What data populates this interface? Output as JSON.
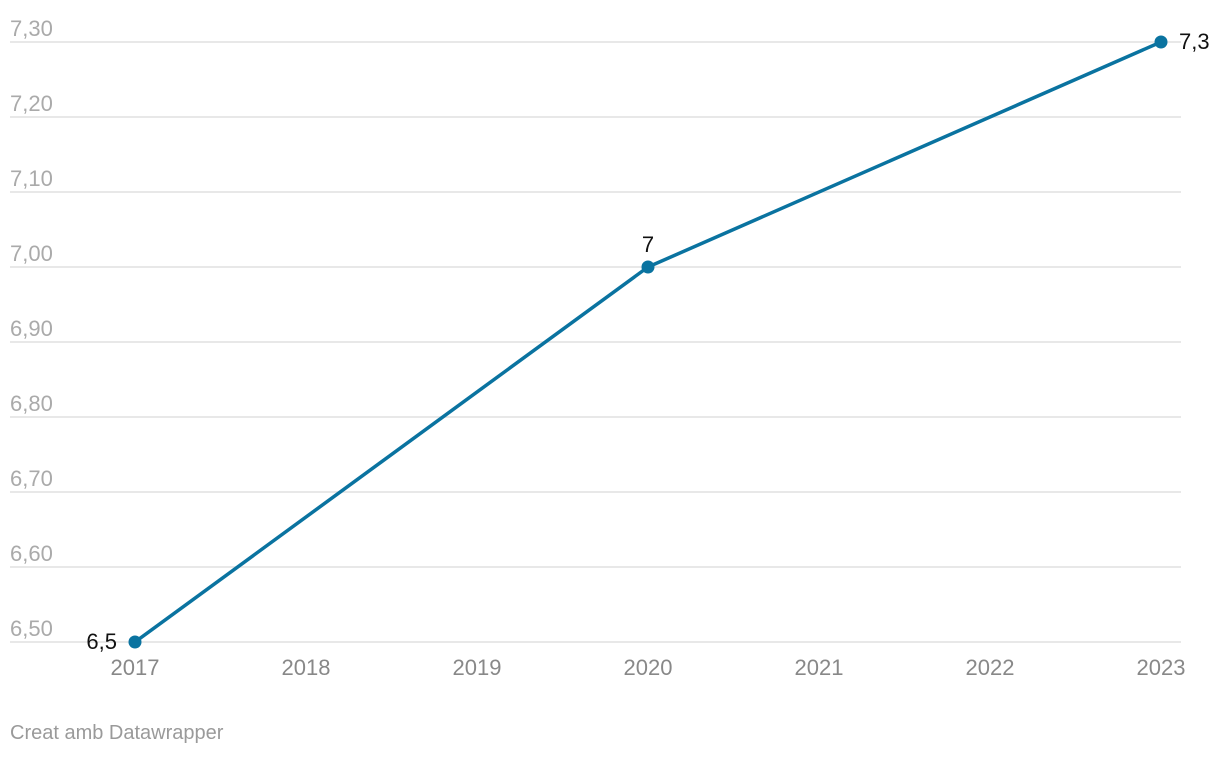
{
  "chart_data": {
    "type": "line",
    "title": "",
    "xlabel": "",
    "ylabel": "",
    "categories": [
      "2017",
      "2018",
      "2019",
      "2020",
      "2021",
      "2022",
      "2023"
    ],
    "series": [
      {
        "color": "#0a73a0",
        "points": [
          {
            "x": "2017",
            "y": 6.5,
            "label": "6,5"
          },
          {
            "x": "2020",
            "y": 7.0,
            "label": "7"
          },
          {
            "x": "2023",
            "y": 7.3,
            "label": "7,3"
          }
        ]
      }
    ],
    "ylim": [
      6.5,
      7.3
    ],
    "yticks": [
      {
        "value": 7.3,
        "label": "7,30"
      },
      {
        "value": 7.2,
        "label": "7,20"
      },
      {
        "value": 7.1,
        "label": "7,10"
      },
      {
        "value": 7.0,
        "label": "7,00"
      },
      {
        "value": 6.9,
        "label": "6,90"
      },
      {
        "value": 6.8,
        "label": "6,80"
      },
      {
        "value": 6.7,
        "label": "6,70"
      },
      {
        "value": 6.6,
        "label": "6,60"
      },
      {
        "value": 6.5,
        "label": "6,50"
      }
    ],
    "grid": true,
    "legend": "none"
  },
  "credit": "Creat amb Datawrapper"
}
